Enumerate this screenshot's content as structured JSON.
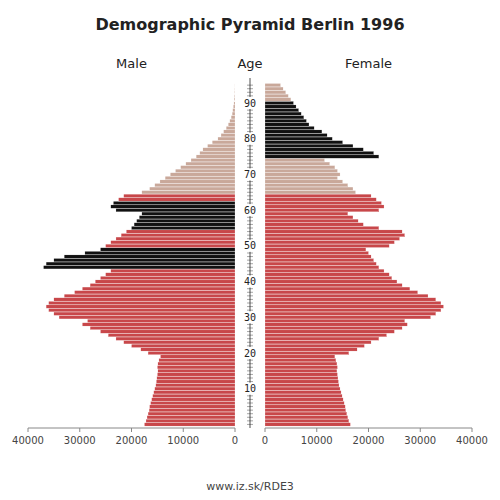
{
  "chart_data": {
    "type": "bar",
    "orientation": "horizontal",
    "title": "Demographic Pyramid Berlin 1996",
    "ylabel": "Age",
    "annotations": [
      "www.iz.sk/RDE3"
    ],
    "categories": [
      null,
      null,
      null,
      null,
      null,
      null,
      null,
      null,
      null,
      null,
      "10",
      null,
      null,
      null,
      null,
      null,
      null,
      null,
      null,
      null,
      "20",
      null,
      null,
      null,
      null,
      null,
      null,
      null,
      null,
      null,
      "30",
      null,
      null,
      null,
      null,
      null,
      null,
      null,
      null,
      null,
      "40",
      null,
      null,
      null,
      null,
      null,
      null,
      null,
      null,
      null,
      "50",
      null,
      null,
      null,
      null,
      null,
      null,
      null,
      null,
      null,
      "60",
      null,
      null,
      null,
      null,
      null,
      null,
      null,
      null,
      null,
      "70",
      null,
      null,
      null,
      null,
      null,
      null,
      null,
      null,
      null,
      "80",
      null,
      null,
      null,
      null,
      null,
      null,
      null,
      null,
      null,
      "90",
      null,
      null,
      null,
      null,
      null
    ],
    "xlim": [
      0,
      40000
    ],
    "xticks": [
      0,
      10000,
      20000,
      30000,
      40000
    ],
    "series": [
      {
        "name": "Male",
        "values": [
          17500,
          17200,
          17000,
          16800,
          16600,
          16500,
          16300,
          16100,
          15900,
          15700,
          15500,
          15300,
          15200,
          15100,
          15000,
          14900,
          15000,
          14900,
          14700,
          14400,
          16800,
          18200,
          20000,
          21500,
          23000,
          24500,
          26000,
          28000,
          29500,
          28500,
          34000,
          35000,
          36000,
          36500,
          36000,
          35000,
          33000,
          31000,
          29500,
          28000,
          27000,
          26000,
          25000,
          24000,
          37000,
          36500,
          35000,
          33000,
          29000,
          26000,
          25000,
          24000,
          23000,
          22000,
          21000,
          20000,
          19500,
          19000,
          18500,
          18000,
          23000,
          24000,
          23500,
          22500,
          21500,
          18000,
          16500,
          15500,
          14500,
          13500,
          12500,
          11500,
          10500,
          9500,
          8500,
          7500,
          6800,
          6200,
          5300,
          4400,
          3300,
          2700,
          2200,
          1700,
          1300,
          1000,
          750,
          550,
          430,
          320,
          210,
          155,
          105,
          65,
          42,
          22
        ],
        "colors": [
          "#c8474a",
          "#c8474a",
          "#c8474a",
          "#c8474a",
          "#c8474a",
          "#c8474a",
          "#c8474a",
          "#c8474a",
          "#c8474a",
          "#c8474a",
          "#c8474a",
          "#c8474a",
          "#c8474a",
          "#c8474a",
          "#c8474a",
          "#c8474a",
          "#c8474a",
          "#c8474a",
          "#c8474a",
          "#c8474a",
          "#c8474a",
          "#c8474a",
          "#c8474a",
          "#c8474a",
          "#c8474a",
          "#c8474a",
          "#c8474a",
          "#c8474a",
          "#c8474a",
          "#c8474a",
          "#c8474a",
          "#c8474a",
          "#c8474a",
          "#c8474a",
          "#c8474a",
          "#c8474a",
          "#c8474a",
          "#c8474a",
          "#c8474a",
          "#c8474a",
          "#c8474a",
          "#c8474a",
          "#c8474a",
          "#c8474a",
          "#111111",
          "#111111",
          "#111111",
          "#111111",
          "#111111",
          "#111111",
          "#c8474a",
          "#c8474a",
          "#c8474a",
          "#c8474a",
          "#c8474a",
          "#111111",
          "#111111",
          "#111111",
          "#111111",
          "#111111",
          "#111111",
          "#111111",
          "#111111",
          "#c8474a",
          "#c8474a",
          "#c9a89a",
          "#c9a89a",
          "#c9a89a",
          "#c9a89a",
          "#c9a89a",
          "#c9a89a",
          "#c9a89a",
          "#c9a89a",
          "#c9a89a",
          "#c9a89a",
          "#c9a89a",
          "#c9a89a",
          "#c9a89a",
          "#c9a89a",
          "#c9a89a",
          "#c9a89a",
          "#c9a89a",
          "#c9a89a",
          "#c9a89a",
          "#c9a89a",
          "#c9a89a",
          "#c9a89a",
          "#c9a89a",
          "#c9a89a",
          "#c9a89a",
          "#c9a89a",
          "#c9a89a",
          "#c9a89a",
          "#c9a89a",
          "#c9a89a",
          "#c9a89a"
        ]
      },
      {
        "name": "Female",
        "values": [
          16500,
          16200,
          16000,
          15800,
          15600,
          15500,
          15300,
          15100,
          14900,
          14700,
          14500,
          14300,
          14200,
          14100,
          14000,
          13900,
          14000,
          13900,
          13700,
          13500,
          16200,
          17800,
          19200,
          20500,
          22000,
          23500,
          25000,
          26500,
          27500,
          27000,
          32000,
          33000,
          34000,
          34500,
          34000,
          33000,
          31500,
          29500,
          28000,
          26500,
          25500,
          24500,
          24000,
          23000,
          22000,
          21500,
          21000,
          20500,
          20000,
          19500,
          24000,
          25000,
          26000,
          27000,
          26500,
          22000,
          19000,
          18000,
          17000,
          16000,
          22000,
          23000,
          22500,
          21500,
          20500,
          17500,
          17000,
          16000,
          15000,
          14000,
          14500,
          14000,
          13500,
          12500,
          11500,
          22000,
          21000,
          19000,
          17000,
          15000,
          13000,
          12000,
          11000,
          9500,
          8500,
          8000,
          7500,
          7000,
          6500,
          6000,
          5500,
          5000,
          4500,
          4000,
          3500,
          3000
        ],
        "colors": [
          "#c8474a",
          "#c8474a",
          "#c8474a",
          "#c8474a",
          "#c8474a",
          "#c8474a",
          "#c8474a",
          "#c8474a",
          "#c8474a",
          "#c8474a",
          "#c8474a",
          "#c8474a",
          "#c8474a",
          "#c8474a",
          "#c8474a",
          "#c8474a",
          "#c8474a",
          "#c8474a",
          "#c8474a",
          "#c8474a",
          "#c8474a",
          "#c8474a",
          "#c8474a",
          "#c8474a",
          "#c8474a",
          "#c8474a",
          "#c8474a",
          "#c8474a",
          "#c8474a",
          "#c8474a",
          "#c8474a",
          "#c8474a",
          "#c8474a",
          "#c8474a",
          "#c8474a",
          "#c8474a",
          "#c8474a",
          "#c8474a",
          "#c8474a",
          "#c8474a",
          "#c8474a",
          "#c8474a",
          "#c8474a",
          "#c8474a",
          "#c8474a",
          "#c8474a",
          "#c8474a",
          "#c8474a",
          "#c8474a",
          "#c8474a",
          "#c8474a",
          "#c8474a",
          "#c8474a",
          "#c8474a",
          "#c8474a",
          "#c8474a",
          "#c8474a",
          "#c8474a",
          "#c8474a",
          "#c8474a",
          "#c8474a",
          "#c8474a",
          "#c8474a",
          "#c8474a",
          "#c8474a",
          "#c9a89a",
          "#c9a89a",
          "#c9a89a",
          "#c9a89a",
          "#c9a89a",
          "#c9a89a",
          "#c9a89a",
          "#c9a89a",
          "#c9a89a",
          "#c9a89a",
          "#111111",
          "#111111",
          "#111111",
          "#111111",
          "#111111",
          "#111111",
          "#111111",
          "#111111",
          "#111111",
          "#111111",
          "#111111",
          "#111111",
          "#111111",
          "#111111",
          "#111111",
          "#111111",
          "#c9a89a",
          "#c9a89a",
          "#c9a89a",
          "#c9a89a",
          "#c9a89a"
        ]
      }
    ]
  }
}
